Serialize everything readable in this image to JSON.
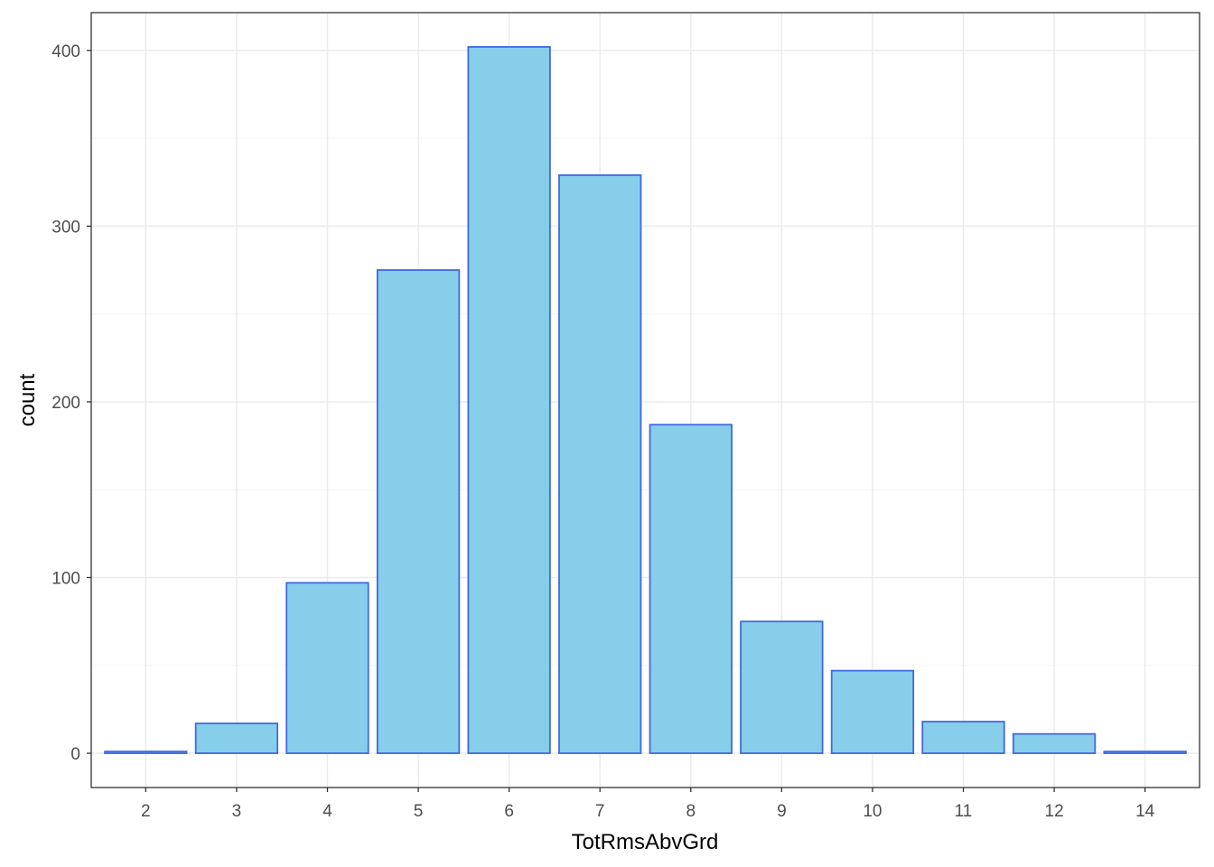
{
  "chart_data": {
    "type": "bar",
    "categories": [
      "2",
      "3",
      "4",
      "5",
      "6",
      "7",
      "8",
      "9",
      "10",
      "11",
      "12",
      "14"
    ],
    "values": [
      1,
      17,
      97,
      275,
      402,
      329,
      187,
      75,
      47,
      18,
      11,
      1
    ],
    "title": "",
    "xlabel": "TotRmsAbvGrd",
    "ylabel": "count",
    "ylim": [
      -19.5,
      421.5
    ],
    "yticks": [
      0,
      100,
      200,
      300,
      400
    ],
    "grid": true,
    "legend": "none",
    "colors": {
      "bar_fill": "#87CEEB",
      "bar_stroke": "#4169E1",
      "panel_border": "#333333",
      "grid_major": "#ebebeb",
      "grid_minor": "#f5f5f5",
      "tick_text": "#4d4d4d"
    }
  }
}
